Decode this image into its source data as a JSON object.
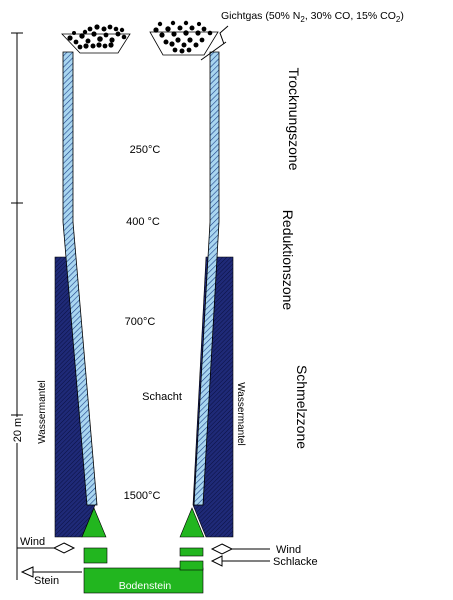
{
  "gas": {
    "label_main": "Gichtgas (50% N",
    "sub_n2": "2",
    "label_mid": ", 30% CO, 15% CO",
    "sub_co2": "2",
    "label_end": ")"
  },
  "zones": {
    "trocknung": "Trocknungszone",
    "reduktion": "Reduktionszone",
    "schmelz": "Schmelzzone"
  },
  "temperatures": {
    "t250": "250°C",
    "t400": "400 °C",
    "t700": "700°C",
    "t1500": "1500°C"
  },
  "labels": {
    "schacht": "Schacht",
    "wassermantel_left": "Wassermantel",
    "wassermantel_right": "Wassermantel",
    "height": "20 m",
    "wind_left": "Wind",
    "wind_right": "Wind",
    "schlacke": "Schlacke",
    "stein": "Stein",
    "bodenstein": "Bodenstein"
  },
  "colors": {
    "lining": "#a9d6f0",
    "water_jacket": "#1f2a78",
    "crucible": "#22b61f",
    "ore": "#000000"
  }
}
